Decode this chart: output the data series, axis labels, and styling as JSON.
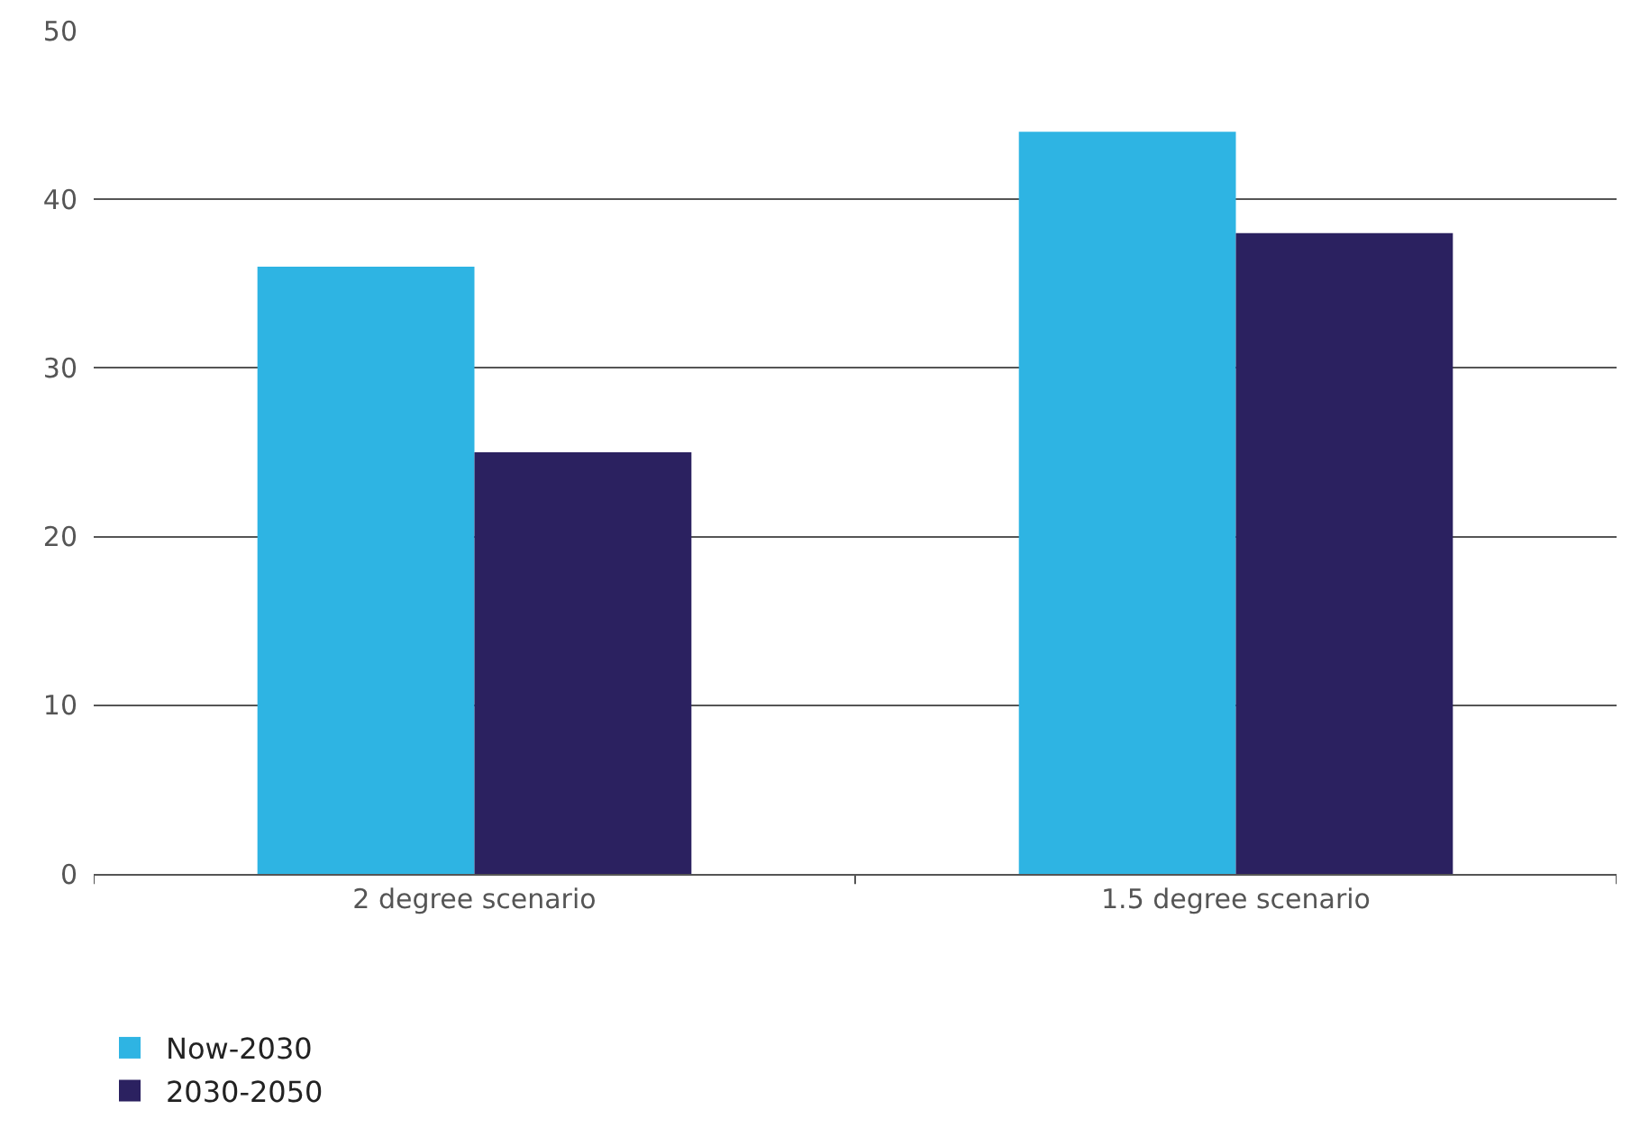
{
  "chart_data": {
    "type": "bar",
    "categories": [
      "2 degree scenario",
      "1.5 degree scenario"
    ],
    "series": [
      {
        "name": "Now-2030",
        "color": "#2eb4e3",
        "values": [
          36,
          44
        ]
      },
      {
        "name": "2030-2050",
        "color": "#2b2160",
        "values": [
          25,
          38
        ]
      }
    ],
    "ylim": [
      0,
      50
    ],
    "yticks": [
      0,
      10,
      20,
      30,
      40,
      50
    ],
    "grid": "y",
    "legend": "bottom left"
  }
}
